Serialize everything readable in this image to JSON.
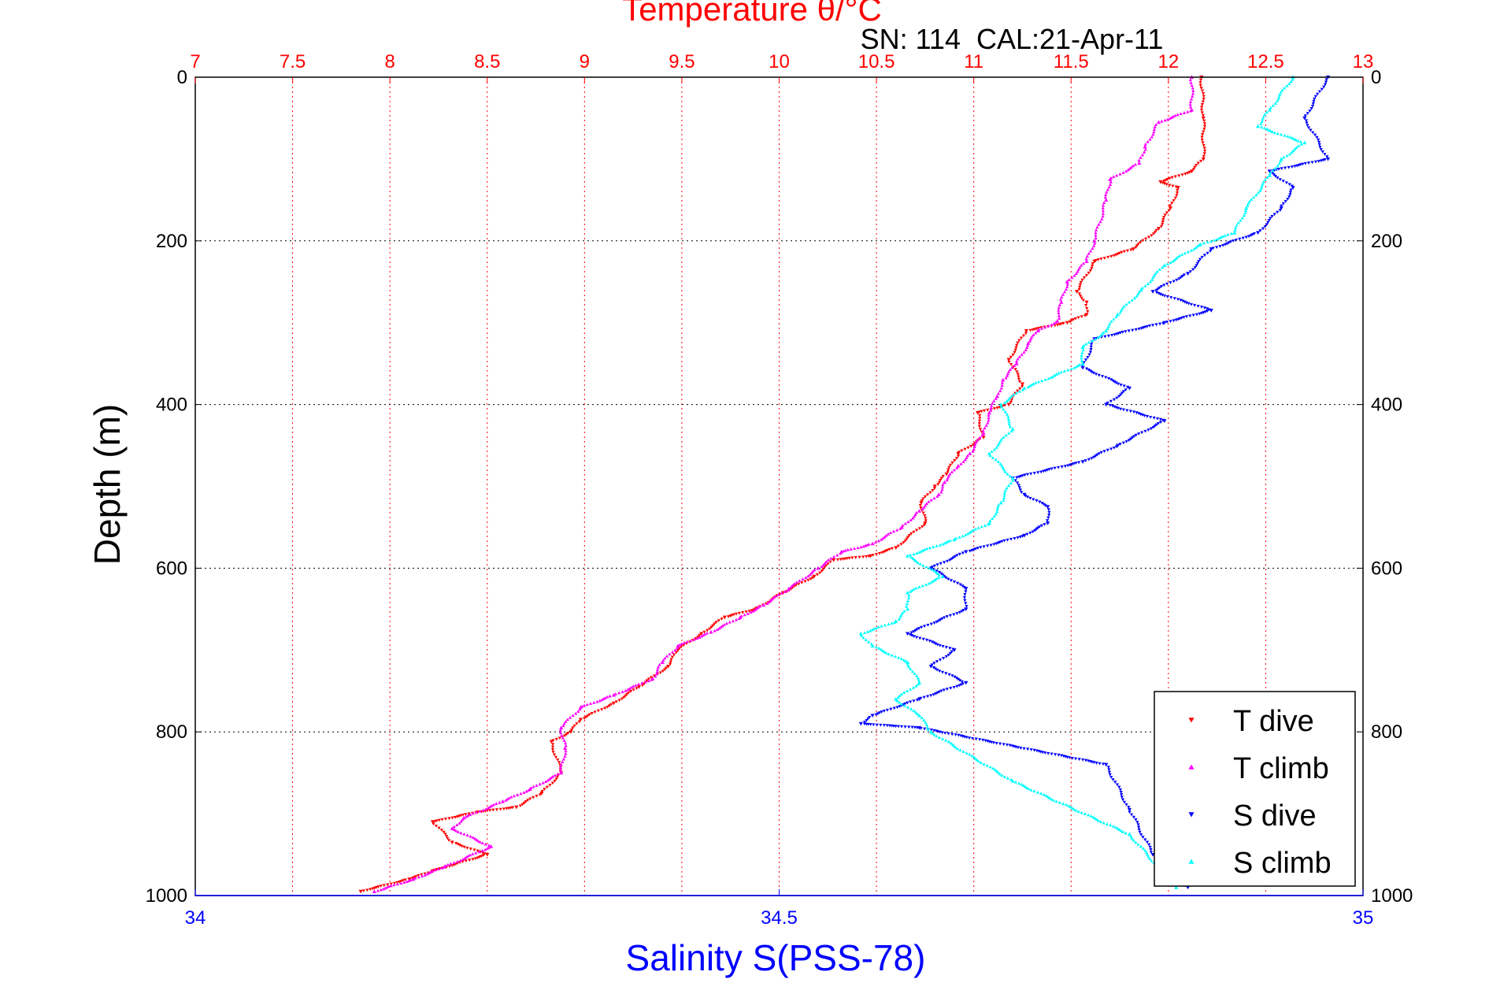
{
  "chart_data": {
    "type": "scatter",
    "title": "Temperature θ/°C",
    "annotation": "SN: 114  CAL:21-Apr-11",
    "top_axis": {
      "label": "Temperature θ/°C",
      "range": [
        7,
        13
      ],
      "ticks": [
        "7",
        "7.5",
        "8",
        "8.5",
        "9",
        "9.5",
        "10",
        "10.5",
        "11",
        "11.5",
        "12",
        "12.5",
        "13"
      ],
      "tick_values": [
        7,
        7.5,
        8,
        8.5,
        9,
        9.5,
        10,
        10.5,
        11,
        11.5,
        12,
        12.5,
        13
      ],
      "color": "#ff0000",
      "grid": true
    },
    "bottom_axis": {
      "label": "Salinity S(PSS-78)",
      "range": [
        34,
        35
      ],
      "ticks": [
        "34",
        "34.5",
        "35"
      ],
      "tick_values": [
        34,
        34.5,
        35
      ],
      "color": "#0000ff"
    },
    "y_axis": {
      "label": "Depth (m)",
      "range": [
        0,
        1000
      ],
      "reversed": true,
      "ticks": [
        "0",
        "200",
        "400",
        "600",
        "800",
        "1000"
      ],
      "tick_values": [
        0,
        200,
        400,
        600,
        800,
        1000
      ],
      "grid": true
    },
    "legend": {
      "position": "bottom-right"
    },
    "series": [
      {
        "name": "T dive",
        "axis": "temperature",
        "color": "#ff0000",
        "marker": "triangle-down",
        "points": [
          [
            12.17,
            0
          ],
          [
            12.18,
            50
          ],
          [
            12.18,
            100
          ],
          [
            12.12,
            115
          ],
          [
            11.96,
            128
          ],
          [
            12.05,
            135
          ],
          [
            12.01,
            160
          ],
          [
            11.95,
            185
          ],
          [
            11.82,
            210
          ],
          [
            11.62,
            225
          ],
          [
            11.53,
            262
          ],
          [
            11.58,
            275
          ],
          [
            11.58,
            290
          ],
          [
            11.48,
            300
          ],
          [
            11.27,
            310
          ],
          [
            11.18,
            345
          ],
          [
            11.25,
            375
          ],
          [
            11.18,
            400
          ],
          [
            11.02,
            410
          ],
          [
            11.05,
            440
          ],
          [
            10.92,
            460
          ],
          [
            10.86,
            485
          ],
          [
            10.8,
            500
          ],
          [
            10.73,
            520
          ],
          [
            10.75,
            545
          ],
          [
            10.6,
            575
          ],
          [
            10.47,
            585
          ],
          [
            10.28,
            590
          ],
          [
            10.18,
            610
          ],
          [
            10.02,
            630
          ],
          [
            9.88,
            650
          ],
          [
            9.72,
            660
          ],
          [
            9.6,
            680
          ],
          [
            9.48,
            700
          ],
          [
            9.43,
            720
          ],
          [
            9.28,
            745
          ],
          [
            9.15,
            765
          ],
          [
            8.98,
            785
          ],
          [
            8.93,
            800
          ],
          [
            8.83,
            812
          ],
          [
            8.88,
            850
          ],
          [
            8.78,
            875
          ],
          [
            8.65,
            892
          ],
          [
            8.45,
            898
          ],
          [
            8.22,
            910
          ],
          [
            8.32,
            935
          ],
          [
            8.5,
            950
          ],
          [
            8.22,
            970
          ],
          [
            8.1,
            980
          ],
          [
            7.85,
            995
          ]
        ]
      },
      {
        "name": "T climb",
        "axis": "temperature",
        "color": "#ff00ff",
        "marker": "triangle-up",
        "points": [
          [
            12.12,
            0
          ],
          [
            12.12,
            40
          ],
          [
            11.95,
            55
          ],
          [
            11.88,
            85
          ],
          [
            11.85,
            105
          ],
          [
            11.7,
            125
          ],
          [
            11.68,
            150
          ],
          [
            11.62,
            200
          ],
          [
            11.58,
            225
          ],
          [
            11.48,
            250
          ],
          [
            11.45,
            275
          ],
          [
            11.43,
            298
          ],
          [
            11.33,
            310
          ],
          [
            11.28,
            325
          ],
          [
            11.22,
            350
          ],
          [
            11.15,
            370
          ],
          [
            11.12,
            390
          ],
          [
            11.08,
            410
          ],
          [
            11.05,
            435
          ],
          [
            10.98,
            460
          ],
          [
            10.92,
            475
          ],
          [
            10.85,
            495
          ],
          [
            10.82,
            510
          ],
          [
            10.72,
            530
          ],
          [
            10.63,
            550
          ],
          [
            10.48,
            570
          ],
          [
            10.32,
            580
          ],
          [
            10.2,
            600
          ],
          [
            10.05,
            625
          ],
          [
            9.92,
            645
          ],
          [
            9.8,
            660
          ],
          [
            9.65,
            678
          ],
          [
            9.48,
            695
          ],
          [
            9.4,
            715
          ],
          [
            9.35,
            735
          ],
          [
            9.15,
            755
          ],
          [
            8.98,
            770
          ],
          [
            8.88,
            795
          ],
          [
            8.9,
            820
          ],
          [
            8.88,
            850
          ],
          [
            8.72,
            870
          ],
          [
            8.58,
            885
          ],
          [
            8.38,
            905
          ],
          [
            8.32,
            918
          ],
          [
            8.52,
            940
          ],
          [
            8.28,
            965
          ],
          [
            8.12,
            980
          ],
          [
            7.92,
            995
          ]
        ]
      },
      {
        "name": "S dive",
        "axis": "salinity",
        "color": "#0000ff",
        "marker": "triangle-down",
        "points": [
          [
            34.97,
            0
          ],
          [
            34.95,
            50
          ],
          [
            34.97,
            100
          ],
          [
            34.92,
            115
          ],
          [
            34.94,
            135
          ],
          [
            34.93,
            160
          ],
          [
            34.91,
            190
          ],
          [
            34.87,
            210
          ],
          [
            34.85,
            240
          ],
          [
            34.82,
            262
          ],
          [
            34.87,
            285
          ],
          [
            34.83,
            300
          ],
          [
            34.77,
            320
          ],
          [
            34.76,
            355
          ],
          [
            34.8,
            380
          ],
          [
            34.78,
            400
          ],
          [
            34.83,
            420
          ],
          [
            34.79,
            450
          ],
          [
            34.76,
            470
          ],
          [
            34.7,
            490
          ],
          [
            34.71,
            510
          ],
          [
            34.73,
            525
          ],
          [
            34.73,
            545
          ],
          [
            34.71,
            560
          ],
          [
            34.66,
            580
          ],
          [
            34.63,
            600
          ],
          [
            34.66,
            625
          ],
          [
            34.66,
            650
          ],
          [
            34.61,
            680
          ],
          [
            34.65,
            700
          ],
          [
            34.63,
            720
          ],
          [
            34.66,
            740
          ],
          [
            34.62,
            760
          ],
          [
            34.58,
            780
          ],
          [
            34.57,
            790
          ],
          [
            34.62,
            795
          ],
          [
            34.78,
            840
          ],
          [
            34.8,
            895
          ],
          [
            34.82,
            950
          ],
          [
            34.85,
            990
          ]
        ]
      },
      {
        "name": "S climb",
        "axis": "salinity",
        "color": "#00ffff",
        "marker": "triangle-up",
        "points": [
          [
            34.94,
            0
          ],
          [
            34.92,
            40
          ],
          [
            34.91,
            60
          ],
          [
            34.95,
            80
          ],
          [
            34.93,
            100
          ],
          [
            34.92,
            120
          ],
          [
            34.9,
            160
          ],
          [
            34.89,
            190
          ],
          [
            34.86,
            205
          ],
          [
            34.83,
            230
          ],
          [
            34.81,
            260
          ],
          [
            34.79,
            290
          ],
          [
            34.78,
            310
          ],
          [
            34.76,
            330
          ],
          [
            34.76,
            350
          ],
          [
            34.71,
            380
          ],
          [
            34.69,
            400
          ],
          [
            34.7,
            430
          ],
          [
            34.68,
            460
          ],
          [
            34.7,
            490
          ],
          [
            34.69,
            520
          ],
          [
            34.68,
            545
          ],
          [
            34.65,
            565
          ],
          [
            34.61,
            585
          ],
          [
            34.64,
            610
          ],
          [
            34.61,
            630
          ],
          [
            34.61,
            650
          ],
          [
            34.6,
            665
          ],
          [
            34.57,
            680
          ],
          [
            34.58,
            695
          ],
          [
            34.61,
            715
          ],
          [
            34.62,
            740
          ],
          [
            34.6,
            760
          ],
          [
            34.62,
            780
          ],
          [
            34.63,
            800
          ],
          [
            34.7,
            860
          ],
          [
            34.8,
            925
          ],
          [
            34.84,
            990
          ]
        ]
      }
    ]
  }
}
